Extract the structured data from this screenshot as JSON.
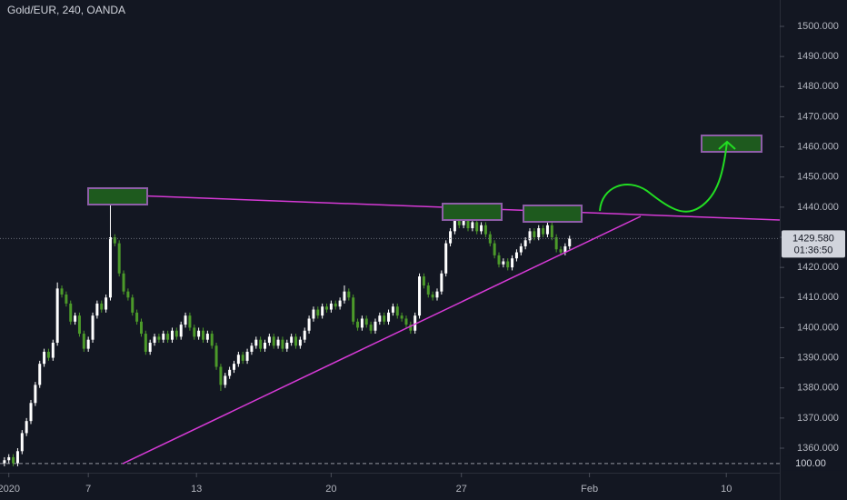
{
  "chart_data": {
    "type": "candlestick",
    "title": "Gold/EUR, 240, OANDA",
    "up_color": "#ffffff",
    "down_color": "#4c9a2a",
    "ylim": [
      1351.85,
      1508.75
    ],
    "yticks": [
      {
        "value": 1360,
        "label": "1360.000"
      },
      {
        "value": 1370,
        "label": "1370.000"
      },
      {
        "value": 1380,
        "label": "1380.000"
      },
      {
        "value": 1390,
        "label": "1390.000"
      },
      {
        "value": 1400,
        "label": "1400.000"
      },
      {
        "value": 1410,
        "label": "1410.000"
      },
      {
        "value": 1420,
        "label": "1420.000"
      },
      {
        "value": 1430,
        "label": "1430.000"
      },
      {
        "value": 1440,
        "label": "1440.000"
      },
      {
        "value": 1450,
        "label": "1450.000"
      },
      {
        "value": 1460,
        "label": "1460.000"
      },
      {
        "value": 1470,
        "label": "1470.000"
      },
      {
        "value": 1480,
        "label": "1480.000"
      },
      {
        "value": 1490,
        "label": "1490.000"
      },
      {
        "value": 1500,
        "label": "1500.000"
      }
    ],
    "xlim": [
      -1,
      175.6
    ],
    "xticks": [
      {
        "value": 1,
        "label": "2020"
      },
      {
        "value": 19,
        "label": "7"
      },
      {
        "value": 43.5,
        "label": "13"
      },
      {
        "value": 74,
        "label": "20"
      },
      {
        "value": 103.5,
        "label": "27"
      },
      {
        "value": 132.5,
        "label": "Feb"
      },
      {
        "value": 163.5,
        "label": "10"
      }
    ],
    "last_price": {
      "value": 1429.58,
      "label": "1429.580"
    },
    "countdown": "01:36:50",
    "baseline": {
      "value": 1354.9,
      "label": "100.00"
    },
    "x": [
      0,
      1,
      2,
      3,
      4,
      5,
      6,
      7,
      8,
      9,
      10,
      11,
      12,
      13,
      14,
      15,
      16,
      17,
      18,
      19,
      20,
      21,
      22,
      23,
      24,
      25,
      26,
      27,
      28,
      29,
      30,
      31,
      32,
      33,
      34,
      35,
      36,
      37,
      38,
      39,
      40,
      41,
      42,
      43,
      44,
      45,
      46,
      47,
      48,
      49,
      50,
      51,
      52,
      53,
      54,
      55,
      56,
      57,
      58,
      59,
      60,
      61,
      62,
      63,
      64,
      65,
      66,
      67,
      68,
      69,
      70,
      71,
      72,
      73,
      74,
      75,
      76,
      77,
      78,
      79,
      80,
      81,
      82,
      83,
      84,
      85,
      86,
      87,
      88,
      89,
      90,
      91,
      92,
      93,
      94,
      95,
      96,
      97,
      98,
      99,
      100,
      101,
      102,
      103,
      104,
      105,
      106,
      107,
      108,
      109,
      110,
      111,
      112,
      113,
      114,
      115,
      116,
      117,
      118,
      119,
      120,
      121,
      122,
      123,
      124,
      125,
      126,
      127,
      128
    ],
    "open": [
      1355,
      1356,
      1357,
      1355,
      1359,
      1365,
      1369,
      1375,
      1381,
      1388,
      1392,
      1390,
      1395,
      1413,
      1411,
      1408,
      1402,
      1404,
      1398,
      1393,
      1396,
      1404,
      1408,
      1406,
      1410,
      1430,
      1428,
      1418,
      1412,
      1410,
      1405,
      1402,
      1398,
      1392,
      1395,
      1397,
      1396,
      1398,
      1396,
      1399,
      1397,
      1401,
      1404,
      1400,
      1397,
      1399,
      1396,
      1398,
      1394,
      1387,
      1381,
      1384,
      1386,
      1388,
      1391,
      1389,
      1392,
      1394,
      1396,
      1393,
      1395,
      1397,
      1394,
      1396,
      1393,
      1395,
      1397,
      1394,
      1396,
      1399,
      1403,
      1406,
      1404,
      1407,
      1406,
      1408,
      1407,
      1409,
      1412,
      1410,
      1402,
      1400,
      1403,
      1401,
      1399,
      1402,
      1404,
      1402,
      1405,
      1407,
      1404,
      1403,
      1401,
      1399,
      1404,
      1417,
      1414,
      1411,
      1410,
      1412,
      1418,
      1428,
      1432,
      1436,
      1434,
      1436,
      1433,
      1435,
      1432,
      1434,
      1431,
      1428,
      1424,
      1421,
      1422,
      1420,
      1423,
      1425,
      1427,
      1429,
      1432,
      1430,
      1433,
      1431,
      1434,
      1430,
      1426,
      1425,
      1427
    ],
    "high": [
      1357,
      1358,
      1358,
      1360,
      1366,
      1370,
      1376,
      1382,
      1389,
      1393,
      1393,
      1396,
      1415,
      1414,
      1412,
      1409,
      1405,
      1405,
      1399,
      1397,
      1405,
      1409,
      1409,
      1411,
      1444,
      1431,
      1429,
      1419,
      1413,
      1411,
      1406,
      1403,
      1399,
      1396,
      1398,
      1398,
      1399,
      1399,
      1400,
      1400,
      1402,
      1405,
      1405,
      1401,
      1400,
      1400,
      1399,
      1399,
      1395,
      1388,
      1385,
      1387,
      1389,
      1392,
      1392,
      1393,
      1395,
      1397,
      1397,
      1396,
      1398,
      1398,
      1397,
      1397,
      1396,
      1398,
      1398,
      1397,
      1400,
      1404,
      1407,
      1407,
      1408,
      1408,
      1409,
      1409,
      1410,
      1414,
      1413,
      1411,
      1403,
      1404,
      1404,
      1402,
      1403,
      1405,
      1405,
      1406,
      1408,
      1408,
      1405,
      1404,
      1402,
      1405,
      1418,
      1418,
      1415,
      1412,
      1413,
      1419,
      1429,
      1433,
      1438,
      1437,
      1437,
      1437,
      1436,
      1436,
      1435,
      1435,
      1432,
      1429,
      1425,
      1423,
      1423,
      1424,
      1426,
      1428,
      1430,
      1433,
      1433,
      1434,
      1434,
      1436,
      1435,
      1431,
      1427,
      1428,
      1430.5
    ],
    "low": [
      1354,
      1355,
      1354,
      1354,
      1358,
      1364,
      1368,
      1374,
      1380,
      1387,
      1389,
      1389,
      1394,
      1410,
      1407,
      1401,
      1401,
      1397,
      1392,
      1392,
      1395,
      1403,
      1405,
      1405,
      1409,
      1427,
      1417,
      1411,
      1409,
      1404,
      1401,
      1397,
      1391,
      1391,
      1394,
      1395,
      1395,
      1395,
      1395,
      1396,
      1396,
      1400,
      1399,
      1396,
      1396,
      1395,
      1395,
      1393,
      1386,
      1379,
      1380,
      1383,
      1385,
      1387,
      1388,
      1388,
      1391,
      1393,
      1392,
      1392,
      1394,
      1393,
      1393,
      1392,
      1392,
      1394,
      1393,
      1393,
      1395,
      1398,
      1402,
      1403,
      1403,
      1405,
      1405,
      1406,
      1406,
      1408,
      1409,
      1401,
      1399,
      1399,
      1400,
      1398,
      1398,
      1401,
      1401,
      1401,
      1404,
      1403,
      1402,
      1400,
      1398,
      1398,
      1403,
      1413,
      1410,
      1409,
      1409,
      1411,
      1417,
      1427,
      1431,
      1433,
      1433,
      1432,
      1432,
      1431,
      1431,
      1430,
      1427,
      1423,
      1420,
      1420,
      1419,
      1419,
      1422,
      1424,
      1426,
      1428,
      1429,
      1429,
      1430,
      1430,
      1429,
      1425,
      1424,
      1424,
      1426
    ],
    "close": [
      1356,
      1357,
      1355,
      1359,
      1365,
      1369,
      1375,
      1381,
      1388,
      1392,
      1390,
      1395,
      1413,
      1411,
      1408,
      1402,
      1404,
      1398,
      1393,
      1396,
      1404,
      1408,
      1406,
      1410,
      1430,
      1428,
      1418,
      1412,
      1410,
      1405,
      1402,
      1398,
      1392,
      1395,
      1397,
      1396,
      1398,
      1396,
      1399,
      1397,
      1401,
      1404,
      1400,
      1397,
      1399,
      1396,
      1398,
      1394,
      1387,
      1381,
      1384,
      1386,
      1388,
      1391,
      1389,
      1392,
      1394,
      1396,
      1393,
      1395,
      1397,
      1394,
      1396,
      1393,
      1395,
      1397,
      1394,
      1396,
      1399,
      1403,
      1406,
      1404,
      1407,
      1406,
      1408,
      1407,
      1409,
      1412,
      1410,
      1402,
      1400,
      1403,
      1401,
      1399,
      1402,
      1404,
      1402,
      1405,
      1407,
      1404,
      1403,
      1401,
      1399,
      1404,
      1417,
      1414,
      1411,
      1410,
      1412,
      1418,
      1428,
      1432,
      1436,
      1434,
      1436,
      1433,
      1435,
      1432,
      1434,
      1431,
      1428,
      1424,
      1421,
      1422,
      1420,
      1423,
      1425,
      1427,
      1429,
      1432,
      1430,
      1433,
      1431,
      1434,
      1430,
      1426,
      1425,
      1427,
      1429.58
    ]
  }
}
